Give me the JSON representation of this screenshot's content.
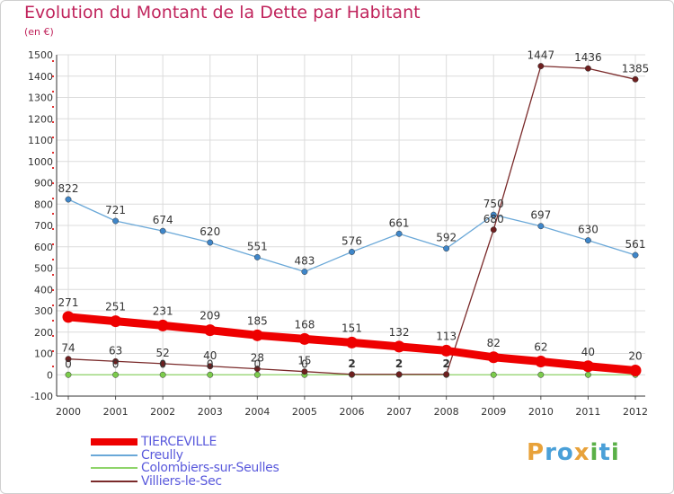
{
  "title": "Evolution du Montant de la Dette par Habitant",
  "unit": "(en €)",
  "logo": {
    "text": "Proxiti",
    "letters": [
      "P",
      "r",
      "o",
      "x",
      "i",
      "t",
      "i"
    ],
    "colors": [
      "#e8a23a",
      "#4aa0d8",
      "#4aa0d8",
      "#e8a23a",
      "#5ab048",
      "#4aa0d8",
      "#5ab048"
    ]
  },
  "chart_data": {
    "type": "line",
    "title": "Evolution du Montant de la Dette par Habitant",
    "ylabel": "(en €)",
    "xlabel": "",
    "x": [
      "2000",
      "2001",
      "2002",
      "2003",
      "2004",
      "2005",
      "2006",
      "2007",
      "2008",
      "2009",
      "2010",
      "2011",
      "2012"
    ],
    "ylim": [
      -100,
      1500
    ],
    "yticks": [
      "-100",
      "0",
      "100",
      "200",
      "300",
      "400",
      "500",
      "600",
      "700",
      "800",
      "900",
      "1000",
      "1100",
      "1200",
      "1300",
      "1400",
      "1500"
    ],
    "grid": true,
    "legend_position": "bottom-left",
    "series": [
      {
        "name": "TIERCEVILLE",
        "color": "#ee0000",
        "marker_color": "#ee0000",
        "values": [
          271,
          251,
          231,
          209,
          185,
          168,
          151,
          132,
          113,
          82,
          62,
          40,
          20
        ],
        "labels": [
          "271",
          "251",
          "231",
          "209",
          "185",
          "168",
          "151",
          "132",
          "113",
          "82",
          "62",
          "40",
          "20"
        ]
      },
      {
        "name": "Creully",
        "color": "#6aa8d8",
        "marker_color": "#3f86c9",
        "values": [
          822,
          721,
          674,
          620,
          551,
          483,
          576,
          661,
          592,
          750,
          697,
          630,
          561
        ],
        "labels": [
          "822",
          "721",
          "674",
          "620",
          "551",
          "483",
          "576",
          "661",
          "592",
          "750",
          "697",
          "630",
          "561"
        ]
      },
      {
        "name": "Colombiers-sur-Seulles",
        "color": "#8fd46a",
        "marker_color": "#7ccc4c",
        "values": [
          0,
          0,
          0,
          0,
          0,
          0,
          0,
          0,
          0,
          0,
          0,
          0,
          0
        ],
        "labels": [
          "0",
          "0",
          "0",
          "0",
          "0",
          "0",
          "",
          "",
          "",
          "",
          "",
          "",
          ""
        ]
      },
      {
        "name": "Villiers-le-Sec",
        "color": "#7a2a2a",
        "marker_color": "#6e1f1f",
        "values": [
          74,
          63,
          52,
          40,
          28,
          15,
          2,
          2,
          2,
          680,
          1447,
          1436,
          1385
        ],
        "labels": [
          "74",
          "63",
          "52",
          "40",
          "28",
          "15",
          "2",
          "2",
          "2",
          "680",
          "1447",
          "1436",
          "1385"
        ]
      }
    ]
  }
}
